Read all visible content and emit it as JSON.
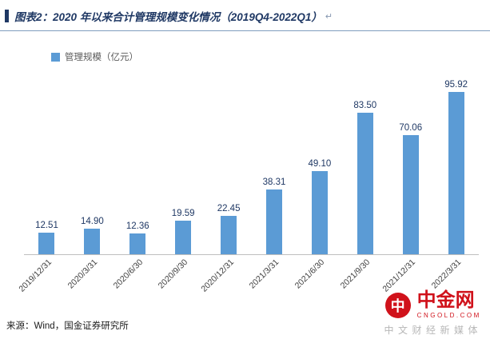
{
  "header": {
    "title": "图表2：2020 年以来合计管理规模变化情况（2019Q4-2022Q1）",
    "return_mark": "↵"
  },
  "chart_data": {
    "type": "bar",
    "title": "2020 年以来合计管理规模变化情况（2019Q4-2022Q1）",
    "legend": "管理规模（亿元）",
    "legend_position": "top-left",
    "categories": [
      "2019/12/31",
      "2020/3/31",
      "2020/6/30",
      "2020/9/30",
      "2020/12/31",
      "2021/3/31",
      "2021/6/30",
      "2021/9/30",
      "2021/12/31",
      "2022/3/31"
    ],
    "values": [
      12.51,
      14.9,
      12.36,
      19.59,
      22.45,
      38.31,
      49.1,
      83.5,
      70.06,
      95.92
    ],
    "labels": [
      "12.51",
      "14.90",
      "12.36",
      "19.59",
      "22.45",
      "38.31",
      "49.10",
      "83.50",
      "70.06",
      "95.92"
    ],
    "xlabel": "",
    "ylabel": "",
    "ylim": [
      0,
      100
    ],
    "grid": false,
    "bar_color": "#5B9BD5",
    "value_label_color": "#1F3864"
  },
  "footer": {
    "source": "来源：Wind，国金证券研究所"
  },
  "watermark": {
    "logo_char": "中",
    "brand": "中金网",
    "domain": "CNGOLD.COM",
    "tagline": "中文财经新媒体",
    "color": "#D0121B"
  }
}
